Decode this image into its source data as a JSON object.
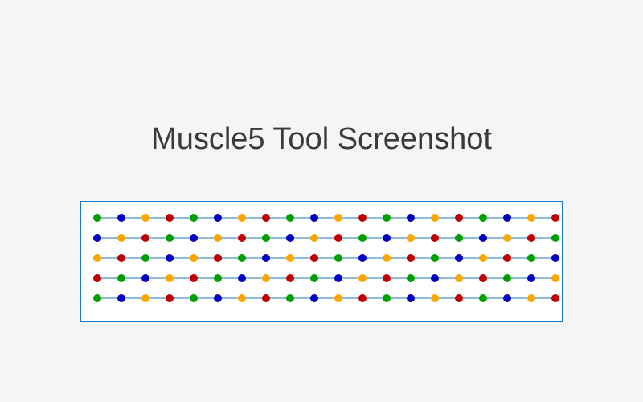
{
  "title": "Muscle5 Tool Screenshot",
  "colors": {
    "background": "#f5f5f5",
    "frame_border": "#1a78c2",
    "line": "#1a78c2",
    "palette": [
      "#00a000",
      "#0000c0",
      "#ffa500",
      "#c00000"
    ]
  },
  "alignment": {
    "row_count": 5,
    "column_count": 20,
    "row_start_color_index": [
      0,
      1,
      2,
      3,
      0
    ],
    "color_cycle": [
      "green",
      "blue",
      "orange",
      "red"
    ]
  }
}
